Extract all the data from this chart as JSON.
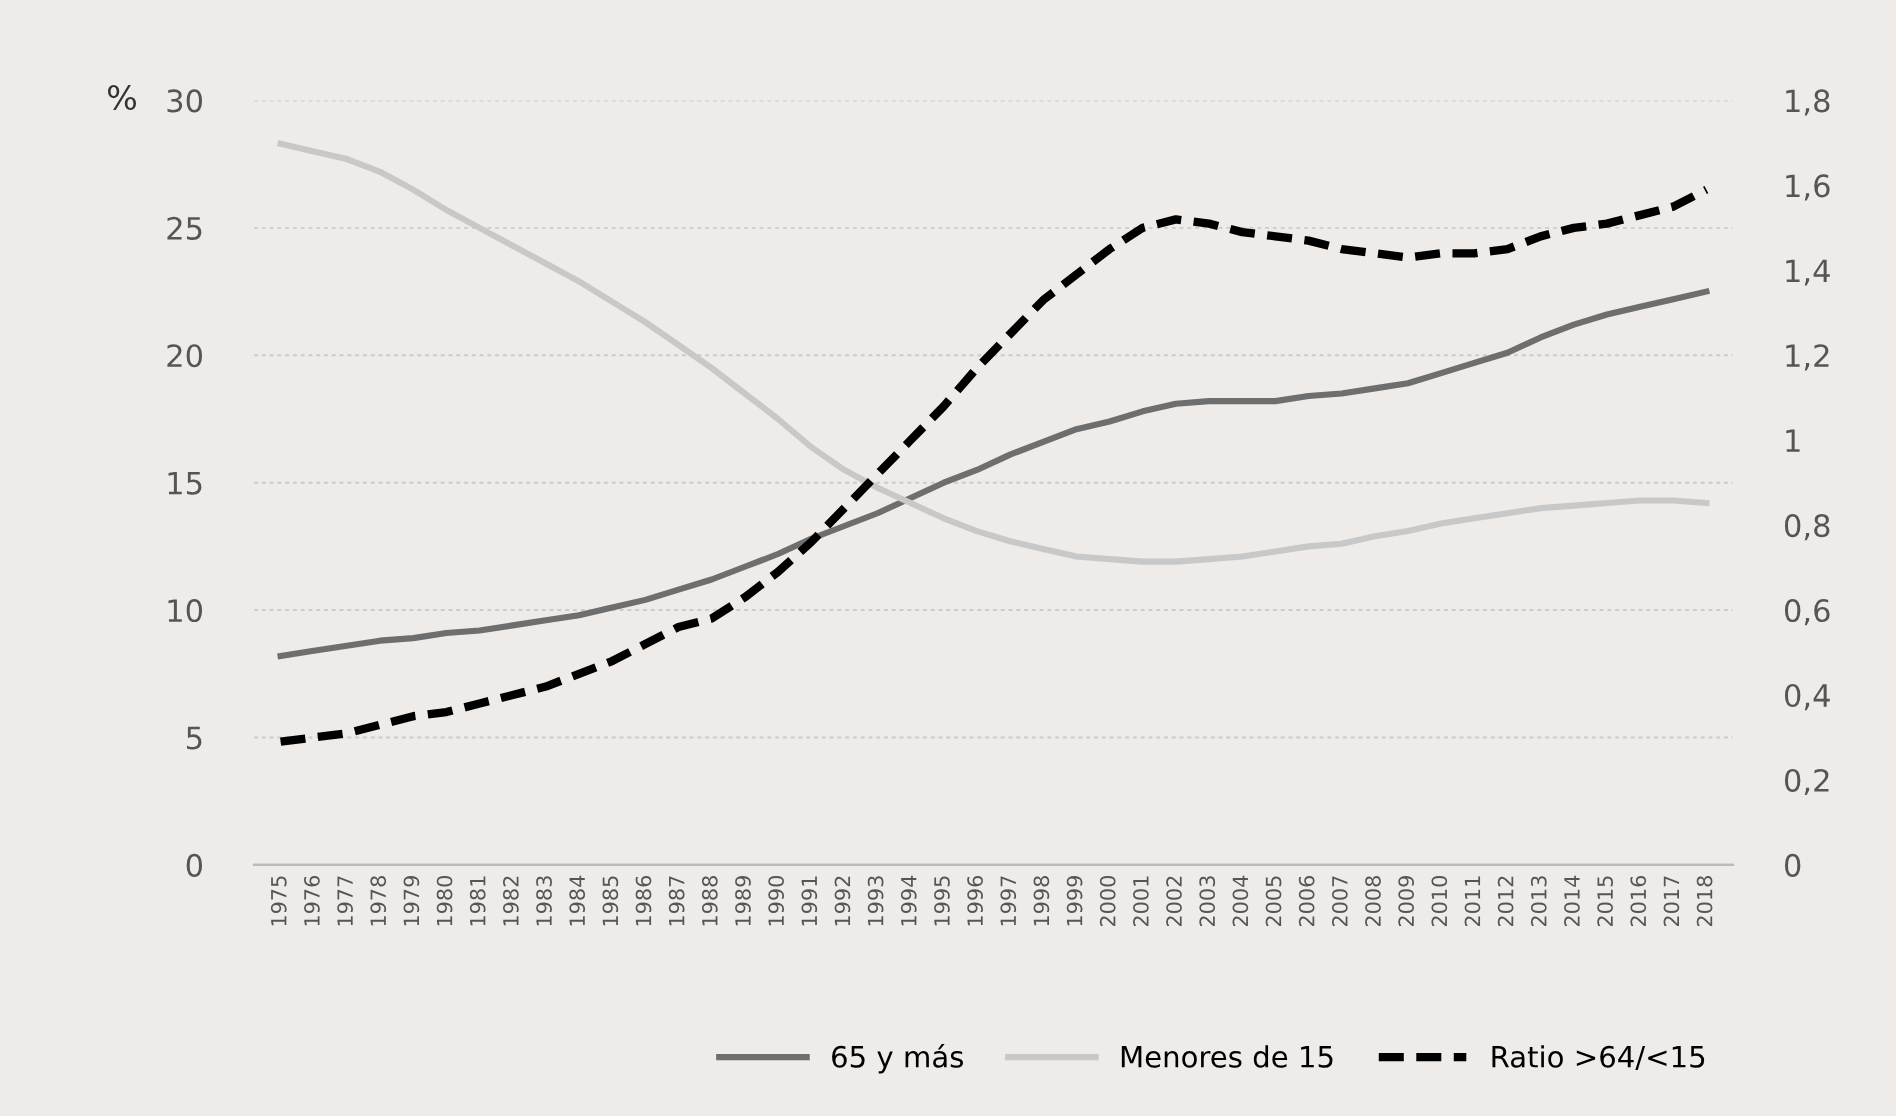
{
  "chart_data": {
    "type": "line",
    "ylabel": "%",
    "categories": [
      "1975",
      "1976",
      "1977",
      "1978",
      "1979",
      "1980",
      "1981",
      "1982",
      "1983",
      "1984",
      "1985",
      "1986",
      "1987",
      "1988",
      "1989",
      "1990",
      "1991",
      "1992",
      "1993",
      "1994",
      "1995",
      "1996",
      "1997",
      "1998",
      "1999",
      "2000",
      "2001",
      "2002",
      "2003",
      "2004",
      "2005",
      "2006",
      "2007",
      "2008",
      "2009",
      "2010",
      "2011",
      "2012",
      "2013",
      "2014",
      "2015",
      "2016",
      "2017",
      "2018"
    ],
    "series": [
      {
        "name": "65 y más",
        "color": "#6e6e6e",
        "line_style": "solid",
        "values": [
          8.2,
          8.4,
          8.6,
          8.8,
          8.9,
          9.1,
          9.2,
          9.4,
          9.6,
          9.8,
          10.1,
          10.4,
          10.8,
          11.2,
          11.7,
          12.2,
          12.8,
          13.3,
          13.8,
          14.4,
          15.0,
          15.5,
          16.1,
          16.6,
          17.1,
          17.4,
          17.8,
          18.1,
          18.2,
          18.2,
          18.2,
          18.4,
          18.5,
          18.7,
          18.9,
          19.3,
          19.7,
          20.1,
          20.7,
          21.2,
          21.6,
          21.9,
          22.2,
          22.5
        ]
      },
      {
        "name": "Menores de 15",
        "color": "#c8c8c8",
        "line_style": "solid",
        "values": [
          28.3,
          28.0,
          27.7,
          27.2,
          26.5,
          25.7,
          25.0,
          24.3,
          23.6,
          22.9,
          22.1,
          21.3,
          20.4,
          19.5,
          18.5,
          17.5,
          16.4,
          15.5,
          14.8,
          14.2,
          13.6,
          13.1,
          12.7,
          12.4,
          12.1,
          12.0,
          11.9,
          11.9,
          12.0,
          12.1,
          12.3,
          12.5,
          12.6,
          12.9,
          13.1,
          13.4,
          13.6,
          13.8,
          14.0,
          14.1,
          14.2,
          14.3,
          14.3,
          14.2
        ]
      },
      {
        "name": "Ratio >64/<15",
        "color": "#000000",
        "line_style": "dashed",
        "axis": "y2",
        "values": [
          0.29,
          0.3,
          0.31,
          0.33,
          0.35,
          0.36,
          0.38,
          0.4,
          0.42,
          0.45,
          0.48,
          0.52,
          0.56,
          0.58,
          0.63,
          0.69,
          0.76,
          0.84,
          0.92,
          1.0,
          1.08,
          1.17,
          1.25,
          1.33,
          1.39,
          1.45,
          1.5,
          1.52,
          1.51,
          1.49,
          1.48,
          1.47,
          1.45,
          1.44,
          1.43,
          1.44,
          1.44,
          1.45,
          1.48,
          1.5,
          1.51,
          1.53,
          1.55,
          1.59
        ]
      }
    ],
    "ylim": [
      0,
      30
    ],
    "yticks": [
      0,
      5,
      10,
      15,
      20,
      25,
      30
    ],
    "y2lim": [
      0,
      1.8
    ],
    "y2ticks": [
      0,
      {
        "value": 0.2,
        "label": "0,2"
      },
      {
        "value": 0.4,
        "label": "0,4"
      },
      {
        "value": 0.6,
        "label": "0,6"
      },
      {
        "value": 0.8,
        "label": "0,8"
      },
      1,
      {
        "value": 1.2,
        "label": "1,2"
      },
      {
        "value": 1.4,
        "label": "1,4"
      },
      {
        "value": 1.6,
        "label": "1,6"
      },
      {
        "value": 1.8,
        "label": "1,8"
      }
    ],
    "grid": "y",
    "legend": "bottom right",
    "marker": "none"
  }
}
